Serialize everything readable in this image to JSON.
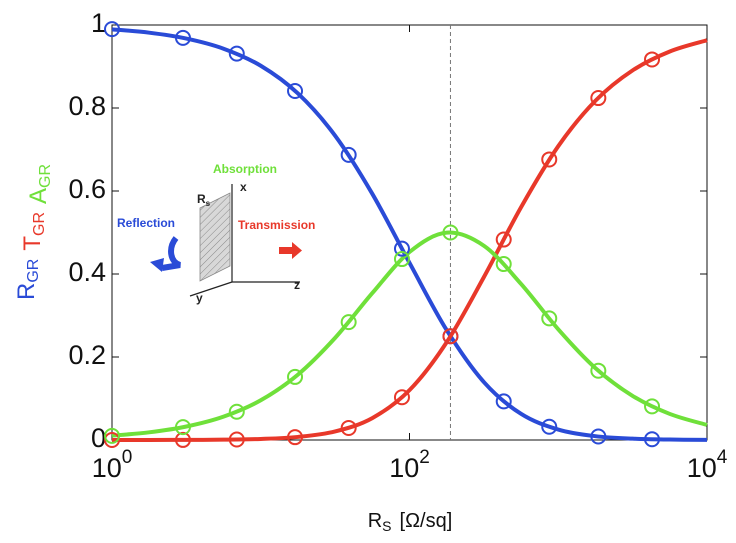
{
  "chart_data": {
    "type": "line",
    "x_label": {
      "text": "R",
      "sub": "S",
      "unit": "[Ω/sq]"
    },
    "y_label": [
      {
        "text": "R",
        "sub": "GR",
        "color": "#2a4bd7"
      },
      {
        "text": "T",
        "sub": "GR",
        "color": "#e8382a"
      },
      {
        "text": "A",
        "sub": "GR",
        "color": "#6fe03a"
      }
    ],
    "log_x": true,
    "xlim": [
      1,
      10000
    ],
    "ylim": [
      0,
      1
    ],
    "xticks": [
      {
        "value": 1,
        "label": "10",
        "exponent": "0"
      },
      {
        "value": 100,
        "label": "10",
        "exponent": "2"
      },
      {
        "value": 10000,
        "label": "10",
        "exponent": "4"
      }
    ],
    "yticks": [
      0,
      0.2,
      0.4,
      0.6,
      0.8,
      1
    ],
    "vline": 188.5,
    "x": [
      1,
      1.778,
      3.162,
      5.623,
      10,
      17.78,
      31.62,
      56.23,
      100,
      177.8,
      316.2,
      562.3,
      1000,
      1778,
      3162,
      5623,
      10000
    ],
    "marker_x": [
      1,
      3,
      6.9,
      17,
      39,
      89,
      188.5,
      430,
      870,
      1860,
      4270
    ],
    "series": [
      {
        "color": "#2a4bd7",
        "values": [
          0.9895,
          0.9815,
          0.9673,
          0.9429,
          0.9018,
          0.835,
          0.7333,
          0.5932,
          0.4269,
          0.2648,
          0.1395,
          0.063,
          0.0252,
          0.0092,
          0.0032,
          0.0011,
          0.0003
        ],
        "marker_values": [
          0.99,
          0.969,
          0.931,
          0.841,
          0.687,
          0.461,
          0.25,
          0.093,
          0.032,
          0.0085,
          0.0018
        ]
      },
      {
        "color": "#e8382a",
        "values": [
          0,
          0.0001,
          0.0003,
          0.0008,
          0.0025,
          0.0074,
          0.0206,
          0.0528,
          0.1201,
          0.2356,
          0.3925,
          0.5609,
          0.708,
          0.8175,
          0.8907,
          0.9362,
          0.9633
        ],
        "marker_values": [
          0,
          0.0002,
          0.0012,
          0.0068,
          0.029,
          0.103,
          0.25,
          0.483,
          0.676,
          0.824,
          0.917
        ]
      },
      {
        "color": "#6fe03a",
        "values": [
          0.0105,
          0.0185,
          0.0325,
          0.0563,
          0.0957,
          0.1576,
          0.2461,
          0.354,
          0.453,
          0.4996,
          0.468,
          0.3761,
          0.2668,
          0.1733,
          0.1062,
          0.0628,
          0.0363
        ],
        "marker_values": [
          0.01,
          0.031,
          0.068,
          0.152,
          0.284,
          0.436,
          0.5,
          0.424,
          0.293,
          0.167,
          0.081
        ]
      }
    ],
    "inset": {
      "absorption": "Absorption",
      "reflection": "Reflection",
      "transmission": "Transmission",
      "sheet": {
        "text": "R",
        "sub": "s"
      },
      "x_axis": "x",
      "y_axis": "y",
      "z_axis": "z"
    }
  }
}
